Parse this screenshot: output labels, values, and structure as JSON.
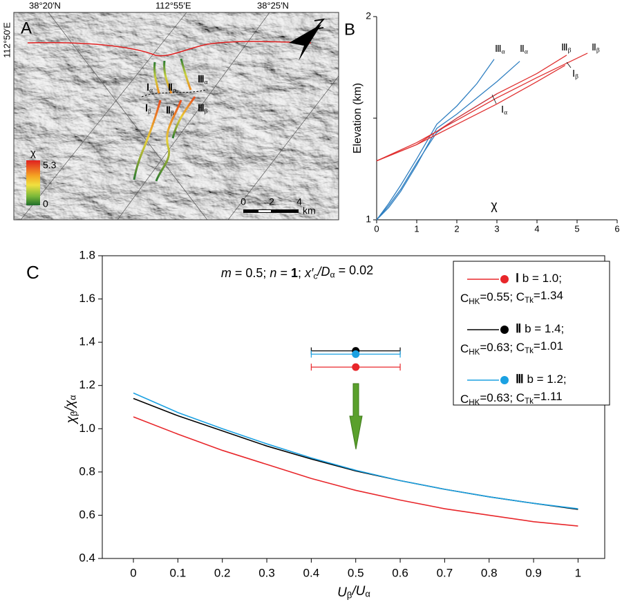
{
  "map": {
    "label": "A",
    "graticule": [
      "38°20′N",
      "112°55′E",
      "38°25′N",
      "112°50′E"
    ],
    "streams": [
      {
        "numeral": "Ⅰ",
        "sub": "α"
      },
      {
        "numeral": "Ⅱ",
        "sub": "α"
      },
      {
        "numeral": "Ⅲ",
        "sub": "α"
      },
      {
        "numeral": "Ⅰ",
        "sub": "β"
      },
      {
        "numeral": "Ⅱ",
        "sub": "β"
      },
      {
        "numeral": "Ⅲ",
        "sub": "β"
      }
    ],
    "legend": {
      "title": "χ",
      "max": 5.3,
      "min": 0
    },
    "scale": [
      "0",
      "2",
      "4",
      "km"
    ]
  },
  "chart_data": [
    {
      "type": "line",
      "label": "B",
      "xlabel": "χ",
      "ylabel": "Elevation (km)",
      "xlim": [
        0,
        6
      ],
      "xticks": [
        0,
        1,
        2,
        3,
        4,
        5,
        6
      ],
      "ylim": [
        1,
        2
      ],
      "yticks": [
        1,
        2
      ],
      "series": [
        {
          "name": "Ⅰ",
          "sub": "α",
          "color": "#2f7fc1",
          "x": [
            0,
            0.3,
            0.6,
            1,
            1.5,
            2,
            2.5,
            3
          ],
          "values": [
            1,
            1.07,
            1.15,
            1.28,
            1.43,
            1.5,
            1.56,
            1.62
          ]
        },
        {
          "name": "Ⅱ",
          "sub": "α",
          "color": "#2f7fc1",
          "x": [
            0,
            0.3,
            0.6,
            1,
            1.5,
            2,
            2.5,
            3,
            3.57
          ],
          "values": [
            1,
            1.06,
            1.14,
            1.27,
            1.45,
            1.52,
            1.6,
            1.68,
            1.78
          ]
        },
        {
          "name": "Ⅲ",
          "sub": "α",
          "color": "#2f7fc1",
          "x": [
            0,
            0.3,
            0.6,
            1,
            1.5,
            2,
            2.5,
            2.93
          ],
          "values": [
            1,
            1.08,
            1.17,
            1.3,
            1.47,
            1.56,
            1.67,
            1.79
          ]
        },
        {
          "name": "Ⅰ",
          "sub": "β",
          "color": "#e03030",
          "x": [
            0,
            1,
            2,
            3,
            4,
            4.7
          ],
          "values": [
            1.29,
            1.37,
            1.47,
            1.57,
            1.68,
            1.76
          ]
        },
        {
          "name": "Ⅱ",
          "sub": "β",
          "color": "#e03030",
          "x": [
            0,
            1,
            2,
            3,
            4,
            5.26
          ],
          "values": [
            1.29,
            1.38,
            1.49,
            1.6,
            1.7,
            1.82
          ]
        },
        {
          "name": "Ⅲ",
          "sub": "β",
          "color": "#e03030",
          "x": [
            0,
            1,
            2,
            3,
            4,
            4.74
          ],
          "values": [
            1.29,
            1.37,
            1.5,
            1.62,
            1.72,
            1.81
          ]
        }
      ]
    },
    {
      "type": "line",
      "label": "C",
      "annotation": [
        "m",
        " = 0.5; ",
        "n",
        " = ",
        "1",
        "; ",
        "x′",
        "c",
        "/",
        "D",
        "α",
        " = 0.02"
      ],
      "xlabel": [
        "U",
        "β",
        "/U",
        "α"
      ],
      "ylabel": [
        "χ",
        "β",
        "/χ",
        "α"
      ],
      "xlim": [
        -0.07,
        1.06
      ],
      "xticks": [
        0,
        0.1,
        0.2,
        0.3,
        0.4,
        0.5,
        0.6,
        0.7,
        0.8,
        0.9,
        1
      ],
      "ylim": [
        0.4,
        1.8
      ],
      "yticks": [
        0.4,
        0.6,
        0.8,
        {
          "value": 1,
          "label": "1.0"
        },
        1.2,
        1.4,
        1.6,
        1.8
      ],
      "x": [
        0,
        0.1,
        0.2,
        0.3,
        0.4,
        0.5,
        0.6,
        0.7,
        0.8,
        0.9,
        1
      ],
      "series": [
        {
          "name": "Ⅰ",
          "label": " b = 1.0;",
          "note": [
            "C",
            "HK",
            "=0.55; C",
            "Tk",
            "=1.34"
          ],
          "color": "#e8262a",
          "values": [
            1.055,
            0.975,
            0.9,
            0.835,
            0.77,
            0.715,
            0.67,
            0.63,
            0.6,
            0.57,
            0.55
          ],
          "point": {
            "x": 0.5,
            "y": 1.285,
            "xerr": 0.1
          }
        },
        {
          "name": "Ⅱ",
          "label": " b = 1.4;",
          "note": [
            "C",
            "HK",
            "=0.63; C",
            "Tk",
            "=1.01"
          ],
          "color": "#000000",
          "values": [
            1.14,
            1.06,
            0.99,
            0.92,
            0.86,
            0.805,
            0.76,
            0.72,
            0.685,
            0.655,
            0.627
          ],
          "point": {
            "x": 0.5,
            "y": 1.36,
            "xerr": 0.1
          }
        },
        {
          "name": "Ⅲ",
          "label": " b = 1.2;",
          "note": [
            "C",
            "HK",
            "=0.63; C",
            "Tk",
            "=1.11"
          ],
          "color": "#1ba1e2",
          "values": [
            1.165,
            1.075,
            1.0,
            0.93,
            0.865,
            0.808,
            0.76,
            0.72,
            0.685,
            0.655,
            0.63
          ],
          "point": {
            "x": 0.5,
            "y": 1.345,
            "xerr": 0.1
          }
        }
      ]
    }
  ]
}
